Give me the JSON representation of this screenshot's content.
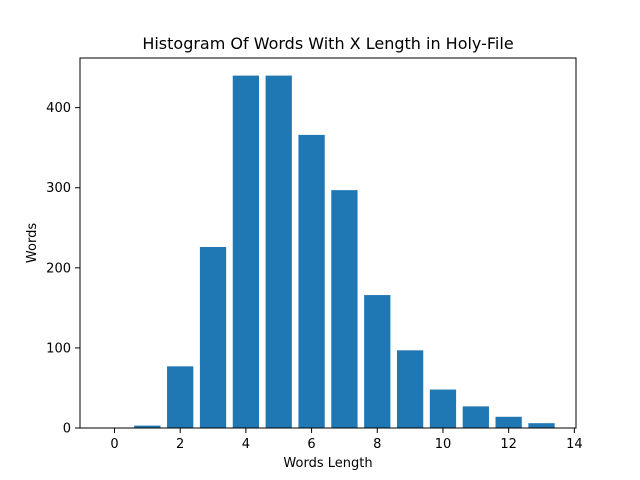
{
  "chart_data": {
    "type": "bar",
    "title": "Histogram Of Words With X Length in Holy-File",
    "xlabel": "Words Length",
    "ylabel": "Words",
    "x": [
      1,
      2,
      3,
      4,
      5,
      6,
      7,
      8,
      9,
      10,
      11,
      12,
      13
    ],
    "values": [
      3,
      77,
      226,
      440,
      440,
      366,
      297,
      166,
      97,
      48,
      27,
      14,
      6
    ],
    "xlim": [
      -1.05,
      14.05
    ],
    "ylim": [
      0,
      462
    ],
    "xticks": [
      0,
      2,
      4,
      6,
      8,
      10,
      12,
      14
    ],
    "yticks": [
      0,
      100,
      200,
      300,
      400
    ],
    "bar_color": "#1f77b4",
    "grid": false,
    "legend": "none"
  }
}
